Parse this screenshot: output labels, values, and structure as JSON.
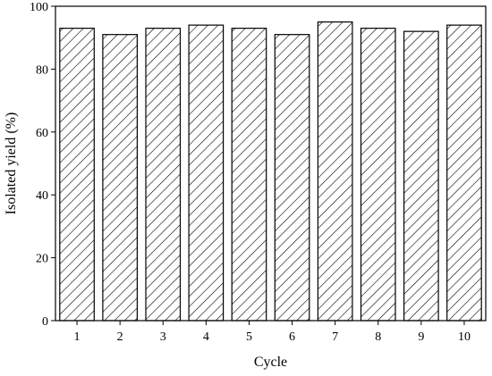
{
  "chart_data": {
    "type": "bar",
    "categories": [
      "1",
      "2",
      "3",
      "4",
      "5",
      "6",
      "7",
      "8",
      "9",
      "10"
    ],
    "values": [
      93,
      91,
      93,
      94,
      93,
      91,
      95,
      93,
      92,
      94
    ],
    "xlabel": "Cycle",
    "ylabel": "Isolated yield (%)",
    "ylim": [
      0,
      100
    ],
    "yticks": [
      0,
      20,
      40,
      60,
      80,
      100
    ],
    "grid": false,
    "bar_fill": "hatched",
    "colors": {
      "bar_stroke": "#000000",
      "hatch": "#000000",
      "background": "#ffffff"
    }
  }
}
